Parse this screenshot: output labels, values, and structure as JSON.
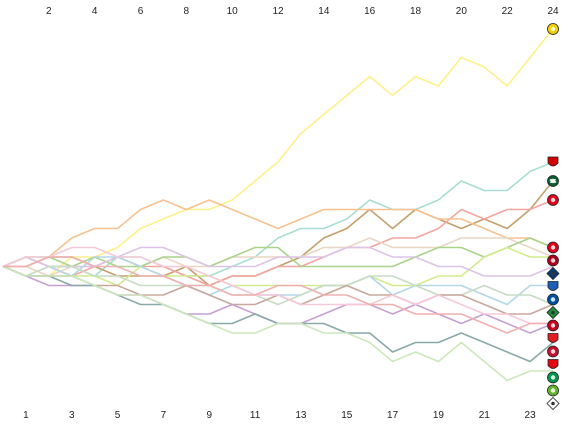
{
  "chart_data": {
    "type": "line",
    "title": "",
    "xlabel": "",
    "ylabel": "",
    "x_top_ticks": [
      "2",
      "4",
      "6",
      "8",
      "10",
      "12",
      "14",
      "16",
      "18",
      "20",
      "22",
      "24"
    ],
    "x_bottom_ticks": [
      "1",
      "3",
      "5",
      "7",
      "9",
      "11",
      "13",
      "15",
      "17",
      "19",
      "21",
      "23"
    ],
    "xlim": [
      1,
      24
    ],
    "ylim": [
      -13,
      27
    ],
    "grid": false,
    "series": [
      {
        "color": "#fff08a",
        "icon": "dortmund-crest-icon",
        "badge": {
          "fill": "#f5d000",
          "shape": "circle"
        },
        "values": [
          0,
          0,
          -1,
          1,
          1,
          2,
          4,
          5,
          6,
          6,
          7,
          9,
          11,
          14,
          16,
          18,
          20,
          18,
          20,
          19,
          22,
          21,
          19,
          22,
          25
        ]
      },
      {
        "color": "#a8dfd2",
        "icon": "leverkusen-crest-icon",
        "badge": {
          "fill": "#d40000",
          "shape": "shield"
        },
        "values": [
          0,
          1,
          0,
          0,
          -1,
          1,
          1,
          0,
          -1,
          -1,
          0,
          1,
          3,
          4,
          4,
          5,
          7,
          6,
          6,
          7,
          9,
          8,
          8,
          10,
          11
        ]
      },
      {
        "color": "#c4a06a",
        "icon": "hannover-crest-icon",
        "badge": {
          "fill": "#0b5d2e",
          "shape": "circle",
          "text": "96"
        },
        "values": [
          0,
          0,
          1,
          1,
          0,
          -1,
          -1,
          -1,
          0,
          -2,
          -1,
          -1,
          0,
          1,
          3,
          4,
          6,
          4,
          6,
          5,
          4,
          5,
          4,
          6,
          9
        ]
      },
      {
        "color": "#f5a5a0",
        "icon": "mainz-crest-icon",
        "badge": {
          "fill": "#e2001a",
          "shape": "circle"
        },
        "values": [
          0,
          1,
          0,
          -1,
          0,
          1,
          0,
          0,
          -1,
          -2,
          -1,
          -1,
          0,
          0,
          1,
          2,
          2,
          3,
          3,
          4,
          6,
          5,
          6,
          6,
          7
        ]
      },
      {
        "color": "#f7c290",
        "icon": "freiburg-crest-icon",
        "badge": {
          "fill": "#e2001a",
          "shape": "circle"
        },
        "values": [
          0,
          0,
          1,
          3,
          4,
          4,
          6,
          7,
          6,
          7,
          6,
          5,
          4,
          5,
          6,
          6,
          6,
          6,
          6,
          5,
          5,
          4,
          3,
          3,
          2
        ]
      },
      {
        "color": "#ead6c4",
        "icon": "hamburg-crest-icon",
        "badge": {
          "fill": "#0b3a7a",
          "shape": "diamond"
        },
        "values": [
          0,
          0,
          -1,
          0,
          0,
          1,
          0,
          1,
          0,
          0,
          1,
          1,
          1,
          1,
          2,
          2,
          3,
          2,
          2,
          2,
          3,
          3,
          3,
          2,
          1
        ]
      },
      {
        "color": "#a9d48a",
        "icon": "nuernberg-crest-icon",
        "badge": {
          "fill": "#b00020",
          "shape": "circle"
        },
        "values": [
          0,
          1,
          1,
          0,
          1,
          0,
          0,
          1,
          1,
          0,
          1,
          2,
          2,
          0,
          0,
          0,
          0,
          0,
          1,
          2,
          2,
          1,
          2,
          3,
          2
        ]
      },
      {
        "color": "#d2ec8c",
        "icon": "hoffenheim-crest-icon",
        "badge": {
          "fill": "#1c5fb4",
          "shape": "shield"
        },
        "values": [
          0,
          -1,
          -1,
          -1,
          -1,
          -2,
          0,
          -1,
          -1,
          -1,
          -2,
          -2,
          -2,
          -2,
          -2,
          -2,
          -1,
          -2,
          -2,
          -1,
          -1,
          1,
          2,
          1,
          1
        ]
      },
      {
        "color": "#ddc4e6",
        "icon": "schalke-crest-icon",
        "badge": {
          "fill": "#0050a0",
          "shape": "circle"
        },
        "values": [
          0,
          1,
          0,
          0,
          0,
          1,
          2,
          2,
          1,
          0,
          0,
          0,
          1,
          1,
          1,
          2,
          2,
          1,
          1,
          0,
          0,
          -1,
          -1,
          -1,
          0
        ]
      },
      {
        "color": "#b2d8e8",
        "icon": "werder-crest-icon",
        "badge": {
          "fill": "#1b8e3a",
          "shape": "diamond"
        },
        "values": [
          0,
          -1,
          0,
          -1,
          1,
          1,
          0,
          -1,
          -2,
          -3,
          -2,
          -3,
          -3,
          -3,
          -2,
          -2,
          -1,
          -3,
          -2,
          -2,
          -2,
          -3,
          -4,
          -2,
          -2
        ]
      },
      {
        "color": "#c8dcc4",
        "icon": "frankfurt-crest-icon",
        "badge": {
          "fill": "#c8001e",
          "shape": "circle"
        },
        "values": [
          0,
          -1,
          0,
          0,
          -1,
          -1,
          -2,
          -2,
          -2,
          -2,
          -3,
          -3,
          -4,
          -3,
          -2,
          -2,
          -1,
          -1,
          -2,
          -3,
          -3,
          -2,
          -3,
          -3,
          -4
        ]
      },
      {
        "color": "#c9a89c",
        "icon": "stuttgart-crest-icon",
        "badge": {
          "fill": "#e31b23",
          "shape": "shield"
        },
        "values": [
          0,
          -1,
          -1,
          -1,
          -2,
          -2,
          -3,
          -3,
          -2,
          -3,
          -4,
          -4,
          -3,
          -4,
          -3,
          -2,
          -3,
          -3,
          -4,
          -3,
          -3,
          -4,
          -5,
          -5,
          -4
        ]
      },
      {
        "color": "#c7a0d2",
        "icon": "augsburg-crest-icon",
        "badge": {
          "fill": "#c8102e",
          "shape": "circle"
        },
        "values": [
          0,
          -1,
          -2,
          -2,
          -2,
          -3,
          -3,
          -4,
          -5,
          -5,
          -4,
          -5,
          -6,
          -6,
          -5,
          -4,
          -4,
          -5,
          -4,
          -5,
          -6,
          -5,
          -6,
          -7,
          -6
        ]
      },
      {
        "color": "#88aaa8",
        "icon": "wolfsburg-crest-icon",
        "badge": {
          "fill": "#65b32e",
          "shape": "circle"
        },
        "values": [
          0,
          -1,
          -1,
          -2,
          -2,
          -3,
          -4,
          -4,
          -5,
          -6,
          -6,
          -5,
          -6,
          -6,
          -6,
          -7,
          -7,
          -9,
          -8,
          -8,
          -7,
          -8,
          -9,
          -10,
          -8
        ]
      },
      {
        "color": "#cbe8bc",
        "icon": "gladbach-crest-icon",
        "badge": {
          "fill": "#ffffff",
          "shape": "diamond"
        },
        "values": [
          0,
          -1,
          -1,
          -1,
          -2,
          -3,
          -3,
          -4,
          -5,
          -6,
          -7,
          -7,
          -6,
          -6,
          -7,
          -7,
          -8,
          -10,
          -9,
          -10,
          -8,
          -10,
          -12,
          -11,
          -11
        ]
      },
      {
        "color": "#f7c8d8",
        "icon": "dusseldorf-crest-icon",
        "badge": {
          "fill": "#e30613",
          "shape": "shield"
        },
        "values": [
          0,
          1,
          1,
          2,
          2,
          1,
          1,
          0,
          0,
          -1,
          -2,
          -3,
          -3,
          -4,
          -4,
          -4,
          -4,
          -3,
          -4,
          -3,
          -4,
          -5,
          -5,
          -6,
          -6
        ]
      },
      {
        "color": "#f0b0b0",
        "icon": "furth-crest-icon",
        "badge": {
          "fill": "#00994c",
          "shape": "circle"
        },
        "values": [
          0,
          0,
          1,
          1,
          0,
          0,
          -1,
          -1,
          -2,
          -2,
          -3,
          -3,
          -2,
          -2,
          -3,
          -3,
          -4,
          -4,
          -5,
          -5,
          -5,
          -6,
          -7,
          -6,
          -6
        ]
      }
    ]
  }
}
